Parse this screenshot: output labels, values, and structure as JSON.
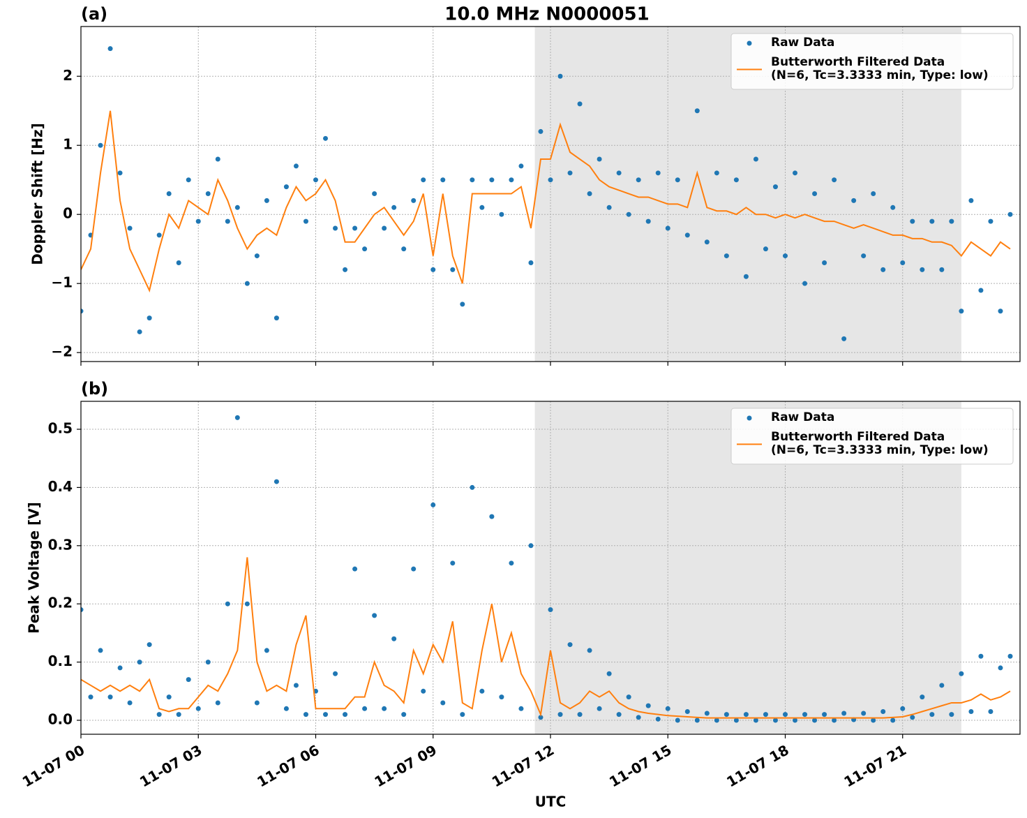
{
  "title": "10.0 MHz N0000051",
  "chart_data": [
    {
      "type": "line",
      "title": "(a)",
      "ylabel": "Doppler Shift [Hz]",
      "x": [
        0,
        0.25,
        0.5,
        0.75,
        1,
        1.25,
        1.5,
        1.75,
        2,
        2.25,
        2.5,
        2.75,
        3,
        3.25,
        3.5,
        3.75,
        4,
        4.25,
        4.5,
        4.75,
        5,
        5.25,
        5.5,
        5.75,
        6,
        6.25,
        6.5,
        6.75,
        7,
        7.25,
        7.5,
        7.75,
        8,
        8.25,
        8.5,
        8.75,
        9,
        9.25,
        9.5,
        9.75,
        10,
        10.25,
        10.5,
        10.75,
        11,
        11.25,
        11.5,
        11.75,
        12,
        12.25,
        12.5,
        12.75,
        13,
        13.25,
        13.5,
        13.75,
        14,
        14.25,
        14.5,
        14.75,
        15,
        15.25,
        15.5,
        15.75,
        16,
        16.25,
        16.5,
        16.75,
        17,
        17.25,
        17.5,
        17.75,
        18,
        18.25,
        18.5,
        18.75,
        19,
        19.25,
        19.5,
        19.75,
        20,
        20.25,
        20.5,
        20.75,
        21,
        21.25,
        21.5,
        21.75,
        22,
        22.25,
        22.5,
        22.75,
        23,
        23.25,
        23.5,
        23.75
      ],
      "series": [
        {
          "name": "Raw Data",
          "type": "scatter",
          "color": "#1f77b4",
          "values": [
            -1.4,
            -0.3,
            1.0,
            2.4,
            0.6,
            -0.2,
            -1.7,
            -1.5,
            -0.3,
            0.3,
            -0.7,
            0.5,
            -0.1,
            0.3,
            0.8,
            -0.1,
            0.1,
            -1.0,
            -0.6,
            0.2,
            -1.5,
            0.4,
            0.7,
            -0.1,
            0.5,
            1.1,
            -0.2,
            -0.8,
            -0.2,
            -0.5,
            0.3,
            -0.2,
            0.1,
            -0.5,
            0.2,
            0.5,
            -0.8,
            0.5,
            -0.8,
            -1.3,
            0.5,
            0.1,
            0.5,
            0.0,
            0.5,
            0.7,
            -0.7,
            1.2,
            0.5,
            2.0,
            0.6,
            1.6,
            0.3,
            0.8,
            0.1,
            0.6,
            0.0,
            0.5,
            -0.1,
            0.6,
            -0.2,
            0.5,
            -0.3,
            1.5,
            -0.4,
            0.6,
            -0.6,
            0.5,
            -0.9,
            0.8,
            -0.5,
            0.4,
            -0.6,
            0.6,
            -1.0,
            0.3,
            -0.7,
            0.5,
            -1.8,
            0.2,
            -0.6,
            0.3,
            -0.8,
            0.1,
            -0.7,
            -0.1,
            -0.8,
            -0.1,
            -0.8,
            -0.1,
            -1.4,
            0.2,
            -1.1,
            -0.1,
            -1.4,
            0.0
          ]
        },
        {
          "name": "Butterworth Filtered Data\n(N=6, Tc=3.3333 min, Type: low)",
          "type": "line",
          "color": "#ff7f0e",
          "values": [
            -0.8,
            -0.5,
            0.6,
            1.5,
            0.2,
            -0.5,
            -0.8,
            -1.1,
            -0.5,
            0.0,
            -0.2,
            0.2,
            0.1,
            0.0,
            0.5,
            0.2,
            -0.2,
            -0.5,
            -0.3,
            -0.2,
            -0.3,
            0.1,
            0.4,
            0.2,
            0.3,
            0.5,
            0.2,
            -0.4,
            -0.4,
            -0.2,
            0.0,
            0.1,
            -0.1,
            -0.3,
            -0.1,
            0.3,
            -0.6,
            0.3,
            -0.6,
            -1.0,
            0.3,
            0.3,
            0.3,
            0.3,
            0.3,
            0.4,
            -0.2,
            0.8,
            0.8,
            1.3,
            0.9,
            0.8,
            0.7,
            0.5,
            0.4,
            0.35,
            0.3,
            0.25,
            0.25,
            0.2,
            0.15,
            0.15,
            0.1,
            0.6,
            0.1,
            0.05,
            0.05,
            0.0,
            0.1,
            0.0,
            0.0,
            -0.05,
            0.0,
            -0.05,
            0.0,
            -0.05,
            -0.1,
            -0.1,
            -0.15,
            -0.2,
            -0.15,
            -0.2,
            -0.25,
            -0.3,
            -0.3,
            -0.35,
            -0.35,
            -0.4,
            -0.4,
            -0.45,
            -0.6,
            -0.4,
            -0.5,
            -0.6,
            -0.4,
            -0.5
          ]
        }
      ],
      "xlim": [
        0,
        24
      ],
      "xticks": [
        0,
        3,
        6,
        9,
        12,
        15,
        18,
        21
      ],
      "ylim": [
        -2.13,
        2.72
      ],
      "yticks": [
        {
          "value": -2,
          "label": "−2"
        },
        {
          "value": -1,
          "label": "−1"
        },
        0,
        1,
        2
      ],
      "grid": true,
      "shade": [
        11.6,
        22.5
      ],
      "legend": "upper right"
    },
    {
      "type": "line",
      "title": "(b)",
      "ylabel": "Peak Voltage [V]",
      "xlabel": "UTC",
      "x": [
        0,
        0.25,
        0.5,
        0.75,
        1,
        1.25,
        1.5,
        1.75,
        2,
        2.25,
        2.5,
        2.75,
        3,
        3.25,
        3.5,
        3.75,
        4,
        4.25,
        4.5,
        4.75,
        5,
        5.25,
        5.5,
        5.75,
        6,
        6.25,
        6.5,
        6.75,
        7,
        7.25,
        7.5,
        7.75,
        8,
        8.25,
        8.5,
        8.75,
        9,
        9.25,
        9.5,
        9.75,
        10,
        10.25,
        10.5,
        10.75,
        11,
        11.25,
        11.5,
        11.75,
        12,
        12.25,
        12.5,
        12.75,
        13,
        13.25,
        13.5,
        13.75,
        14,
        14.25,
        14.5,
        14.75,
        15,
        15.25,
        15.5,
        15.75,
        16,
        16.25,
        16.5,
        16.75,
        17,
        17.25,
        17.5,
        17.75,
        18,
        18.25,
        18.5,
        18.75,
        19,
        19.25,
        19.5,
        19.75,
        20,
        20.25,
        20.5,
        20.75,
        21,
        21.25,
        21.5,
        21.75,
        22,
        22.25,
        22.5,
        22.75,
        23,
        23.25,
        23.5,
        23.75
      ],
      "series": [
        {
          "name": "Raw Data",
          "type": "scatter",
          "color": "#1f77b4",
          "values": [
            0.19,
            0.04,
            0.12,
            0.04,
            0.09,
            0.03,
            0.1,
            0.13,
            0.01,
            0.04,
            0.01,
            0.07,
            0.02,
            0.1,
            0.03,
            0.2,
            0.52,
            0.2,
            0.03,
            0.12,
            0.41,
            0.02,
            0.06,
            0.01,
            0.05,
            0.01,
            0.08,
            0.01,
            0.26,
            0.02,
            0.18,
            0.02,
            0.14,
            0.01,
            0.26,
            0.05,
            0.37,
            0.03,
            0.27,
            0.01,
            0.4,
            0.05,
            0.35,
            0.04,
            0.27,
            0.02,
            0.3,
            0.005,
            0.19,
            0.01,
            0.13,
            0.01,
            0.12,
            0.02,
            0.08,
            0.01,
            0.04,
            0.005,
            0.025,
            0.002,
            0.02,
            0.0,
            0.015,
            0.0,
            0.012,
            0.0,
            0.01,
            0.0,
            0.01,
            0.0,
            0.01,
            0.0,
            0.01,
            0.0,
            0.01,
            0.0,
            0.01,
            0.0,
            0.012,
            0.001,
            0.012,
            0.0,
            0.015,
            0.0,
            0.02,
            0.005,
            0.04,
            0.01,
            0.06,
            0.01,
            0.08,
            0.015,
            0.11,
            0.015,
            0.09,
            0.11
          ]
        },
        {
          "name": "Butterworth Filtered Data\n(N=6, Tc=3.3333 min, Type: low)",
          "type": "line",
          "color": "#ff7f0e",
          "values": [
            0.07,
            0.06,
            0.05,
            0.06,
            0.05,
            0.06,
            0.05,
            0.07,
            0.02,
            0.015,
            0.02,
            0.02,
            0.04,
            0.06,
            0.05,
            0.08,
            0.12,
            0.28,
            0.1,
            0.05,
            0.06,
            0.05,
            0.13,
            0.18,
            0.02,
            0.02,
            0.02,
            0.02,
            0.04,
            0.04,
            0.1,
            0.06,
            0.05,
            0.03,
            0.12,
            0.08,
            0.13,
            0.1,
            0.17,
            0.03,
            0.02,
            0.12,
            0.2,
            0.1,
            0.15,
            0.08,
            0.05,
            0.01,
            0.12,
            0.03,
            0.02,
            0.03,
            0.05,
            0.04,
            0.05,
            0.03,
            0.02,
            0.015,
            0.012,
            0.01,
            0.008,
            0.007,
            0.006,
            0.005,
            0.004,
            0.004,
            0.004,
            0.004,
            0.004,
            0.004,
            0.004,
            0.004,
            0.004,
            0.004,
            0.004,
            0.004,
            0.004,
            0.004,
            0.004,
            0.004,
            0.004,
            0.004,
            0.004,
            0.005,
            0.006,
            0.01,
            0.015,
            0.02,
            0.025,
            0.03,
            0.03,
            0.035,
            0.045,
            0.035,
            0.04,
            0.05
          ]
        }
      ],
      "xlim": [
        0,
        24
      ],
      "xticks": [
        {
          "value": 0,
          "label": "11-07 00"
        },
        {
          "value": 3,
          "label": "11-07 03"
        },
        {
          "value": 6,
          "label": "11-07 06"
        },
        {
          "value": 9,
          "label": "11-07 09"
        },
        {
          "value": 12,
          "label": "11-07 12"
        },
        {
          "value": 15,
          "label": "11-07 15"
        },
        {
          "value": 18,
          "label": "11-07 18"
        },
        {
          "value": 21,
          "label": "11-07 21"
        }
      ],
      "ylim": [
        -0.024,
        0.548
      ],
      "yticks": [
        {
          "value": 0,
          "label": "0.0"
        },
        0.1,
        0.2,
        0.3,
        0.4,
        0.5
      ],
      "grid": true,
      "shade": [
        11.6,
        22.5
      ],
      "legend": "upper right"
    }
  ]
}
